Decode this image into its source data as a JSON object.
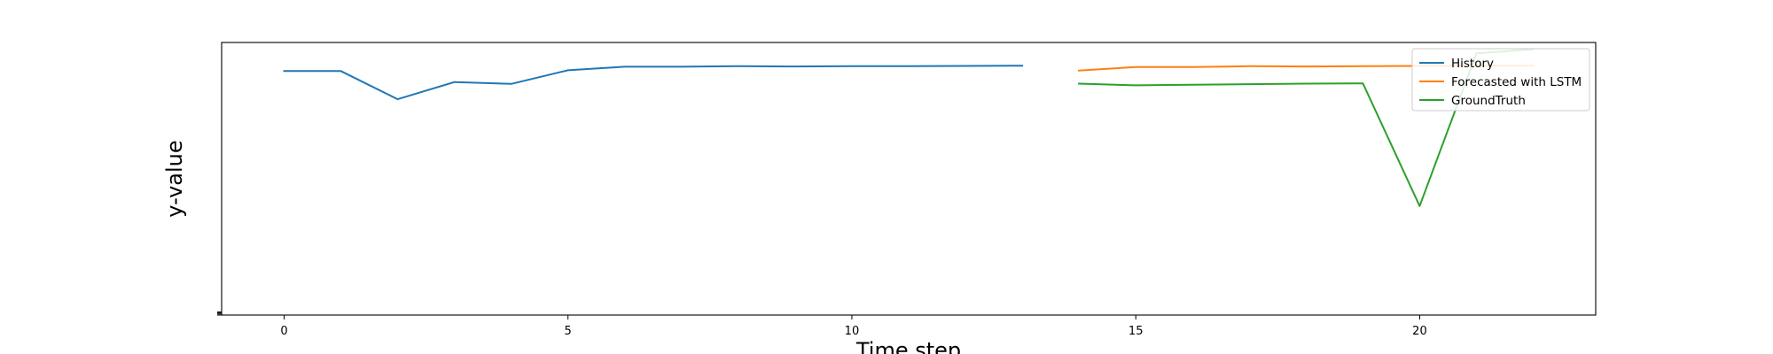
{
  "chart_data": {
    "type": "line",
    "title": "",
    "xlabel": "Time step",
    "ylabel": "y-value",
    "xlim": [
      -1.1,
      23.1
    ],
    "ylim": [
      0,
      1
    ],
    "x_ticks": [
      0,
      5,
      10,
      15,
      20
    ],
    "grid": false,
    "legend_position": "top-right",
    "series": [
      {
        "name": "History",
        "color": "#1f77b4",
        "x": [
          0,
          1,
          2,
          3,
          4,
          5,
          6,
          7,
          8,
          9,
          10,
          11,
          12,
          13
        ],
        "y": [
          0.895,
          0.895,
          0.792,
          0.855,
          0.848,
          0.898,
          0.911,
          0.911,
          0.913,
          0.912,
          0.913,
          0.913,
          0.914,
          0.915
        ]
      },
      {
        "name": "Forecasted with LSTM",
        "color": "#ff7f0e",
        "x": [
          14,
          15,
          16,
          17,
          18,
          19,
          20,
          21,
          22
        ],
        "y": [
          0.897,
          0.91,
          0.91,
          0.913,
          0.912,
          0.913,
          0.914,
          0.915,
          0.915
        ]
      },
      {
        "name": "GroundTruth",
        "color": "#2ca02c",
        "x": [
          14,
          15,
          16,
          17,
          18,
          19,
          20,
          21,
          22
        ],
        "y": [
          0.849,
          0.843,
          0.845,
          0.847,
          0.849,
          0.85,
          0.4,
          0.96,
          0.975
        ]
      }
    ]
  }
}
